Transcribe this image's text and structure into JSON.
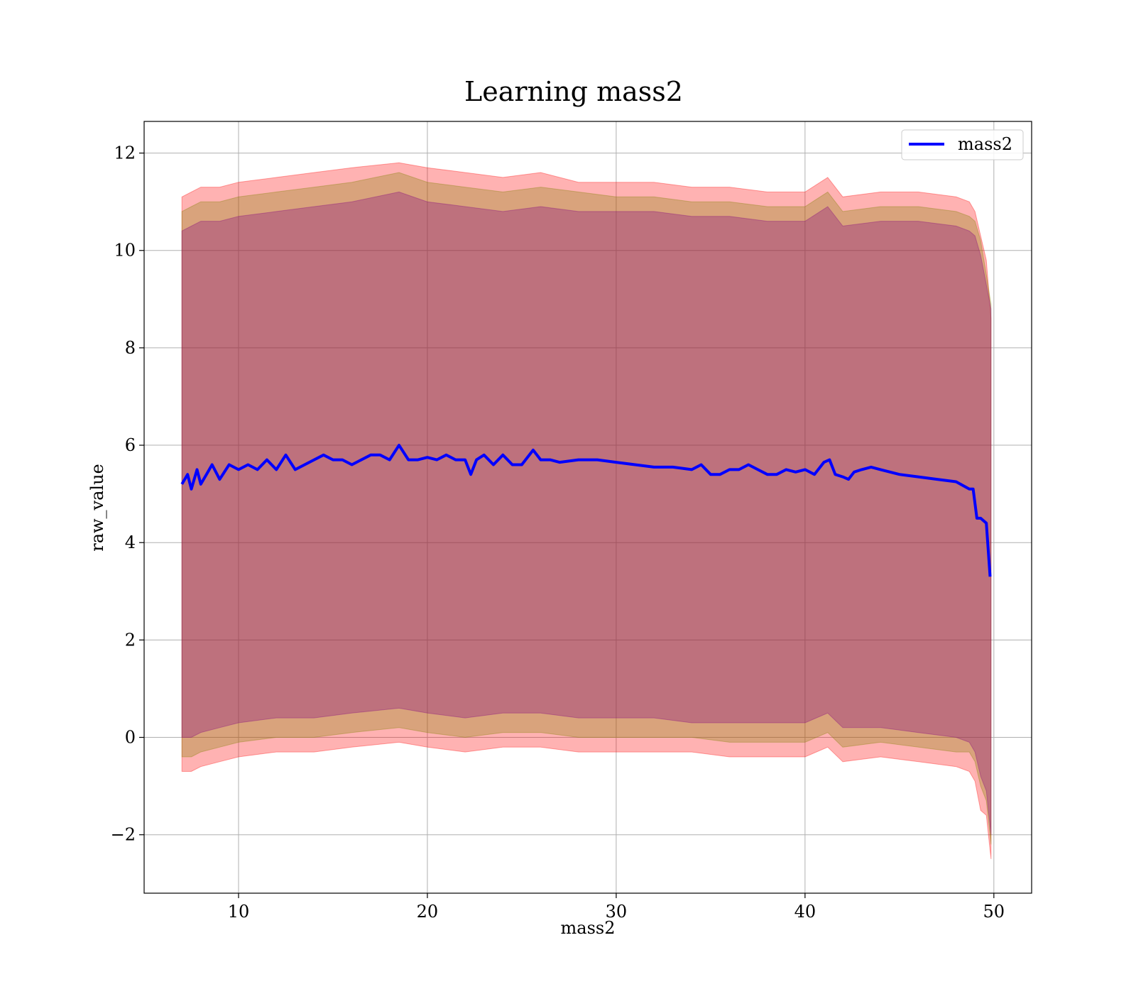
{
  "chart_data": {
    "type": "line",
    "title": "Learning mass2",
    "xlabel": "mass2",
    "ylabel": "raw_value",
    "xlim": [
      5,
      52
    ],
    "ylim": [
      -3.2,
      12.65
    ],
    "xticks": [
      10,
      20,
      30,
      40,
      50
    ],
    "yticks": [
      -2,
      0,
      2,
      4,
      6,
      8,
      10,
      12
    ],
    "xtick_labels": [
      "10",
      "20",
      "30",
      "40",
      "50"
    ],
    "ytick_labels": [
      "−2",
      "0",
      "2",
      "4",
      "6",
      "8",
      "10",
      "12"
    ],
    "grid": true,
    "legend": {
      "position": "top-right",
      "entries": [
        {
          "label": "mass2",
          "color": "#0000ff"
        }
      ]
    },
    "series": [
      {
        "name": "mass2",
        "color": "#0000ff",
        "x": [
          7.0,
          7.3,
          7.5,
          7.8,
          8.0,
          8.3,
          8.6,
          9.0,
          9.5,
          10.0,
          10.5,
          11.0,
          11.5,
          12.0,
          12.5,
          13.0,
          13.5,
          14.0,
          14.5,
          15.0,
          15.5,
          16.0,
          16.5,
          17.0,
          17.5,
          18.0,
          18.5,
          19.0,
          19.5,
          20.0,
          20.5,
          21.0,
          21.5,
          22.0,
          22.3,
          22.6,
          23.0,
          23.5,
          24.0,
          24.5,
          25.0,
          25.6,
          26.0,
          26.5,
          27.0,
          28.0,
          29.0,
          30.0,
          31.0,
          32.0,
          33.0,
          34.0,
          34.5,
          35.0,
          35.5,
          36.0,
          36.5,
          37.0,
          37.5,
          38.0,
          38.5,
          39.0,
          39.5,
          40.0,
          40.5,
          41.0,
          41.3,
          41.6,
          42.0,
          42.3,
          42.6,
          43.0,
          43.5,
          44.0,
          44.5,
          45.0,
          46.0,
          47.0,
          48.0,
          48.7,
          48.9,
          49.1,
          49.3,
          49.6,
          49.8
        ],
        "y": [
          5.2,
          5.4,
          5.1,
          5.5,
          5.2,
          5.4,
          5.6,
          5.3,
          5.6,
          5.5,
          5.6,
          5.5,
          5.7,
          5.5,
          5.8,
          5.5,
          5.6,
          5.7,
          5.8,
          5.7,
          5.7,
          5.6,
          5.7,
          5.8,
          5.8,
          5.7,
          6.0,
          5.7,
          5.7,
          5.75,
          5.7,
          5.8,
          5.7,
          5.7,
          5.4,
          5.7,
          5.8,
          5.6,
          5.8,
          5.6,
          5.6,
          5.9,
          5.7,
          5.7,
          5.65,
          5.7,
          5.7,
          5.65,
          5.6,
          5.55,
          5.55,
          5.5,
          5.6,
          5.4,
          5.4,
          5.5,
          5.5,
          5.6,
          5.5,
          5.4,
          5.4,
          5.5,
          5.45,
          5.5,
          5.4,
          5.65,
          5.7,
          5.4,
          5.35,
          5.3,
          5.45,
          5.5,
          5.55,
          5.5,
          5.45,
          5.4,
          5.35,
          5.3,
          5.25,
          5.1,
          5.1,
          4.5,
          4.5,
          4.4,
          3.3
        ]
      }
    ],
    "bands": [
      {
        "color": "#ff0000",
        "opacity": 0.3,
        "x": [
          7.0,
          7.5,
          8.0,
          9.0,
          10.0,
          12.0,
          14.0,
          16.0,
          18.5,
          20.0,
          22.0,
          24.0,
          26.0,
          28.0,
          30.0,
          32.0,
          34.0,
          36.0,
          38.0,
          40.0,
          41.2,
          42.0,
          44.0,
          46.0,
          48.0,
          48.7,
          49.0,
          49.3,
          49.6,
          49.85
        ],
        "upper": [
          11.1,
          11.2,
          11.3,
          11.3,
          11.4,
          11.5,
          11.6,
          11.7,
          11.8,
          11.7,
          11.6,
          11.5,
          11.6,
          11.4,
          11.4,
          11.4,
          11.3,
          11.3,
          11.2,
          11.2,
          11.5,
          11.1,
          11.2,
          11.2,
          11.1,
          11.0,
          10.8,
          10.3,
          9.8,
          8.6
        ],
        "lower": [
          -0.7,
          -0.7,
          -0.6,
          -0.5,
          -0.4,
          -0.3,
          -0.3,
          -0.2,
          -0.1,
          -0.2,
          -0.3,
          -0.2,
          -0.2,
          -0.3,
          -0.3,
          -0.3,
          -0.3,
          -0.4,
          -0.4,
          -0.4,
          -0.2,
          -0.5,
          -0.4,
          -0.5,
          -0.6,
          -0.7,
          -0.9,
          -1.5,
          -1.6,
          -2.5
        ]
      },
      {
        "color": "#808000",
        "opacity": 0.3,
        "x": [
          7.0,
          7.5,
          8.0,
          9.0,
          10.0,
          12.0,
          14.0,
          16.0,
          18.5,
          20.0,
          22.0,
          24.0,
          26.0,
          28.0,
          30.0,
          32.0,
          34.0,
          36.0,
          38.0,
          40.0,
          41.2,
          42.0,
          44.0,
          46.0,
          48.0,
          48.7,
          49.0,
          49.3,
          49.6,
          49.85
        ],
        "upper": [
          10.8,
          10.9,
          11.0,
          11.0,
          11.1,
          11.2,
          11.3,
          11.4,
          11.6,
          11.4,
          11.3,
          11.2,
          11.3,
          11.2,
          11.1,
          11.1,
          11.0,
          11.0,
          10.9,
          10.9,
          11.2,
          10.8,
          10.9,
          10.9,
          10.8,
          10.7,
          10.6,
          10.2,
          9.5,
          8.9
        ],
        "lower": [
          -0.4,
          -0.4,
          -0.3,
          -0.2,
          -0.1,
          0.0,
          0.0,
          0.1,
          0.2,
          0.1,
          0.0,
          0.1,
          0.1,
          0.0,
          0.0,
          0.0,
          0.0,
          -0.1,
          -0.1,
          -0.1,
          0.1,
          -0.2,
          -0.1,
          -0.2,
          -0.3,
          -0.3,
          -0.5,
          -1.0,
          -1.3,
          -2.2
        ]
      },
      {
        "color": "#800080",
        "opacity": 0.3,
        "x": [
          7.0,
          7.5,
          8.0,
          9.0,
          10.0,
          12.0,
          14.0,
          16.0,
          18.5,
          20.0,
          22.0,
          24.0,
          26.0,
          28.0,
          30.0,
          32.0,
          34.0,
          36.0,
          38.0,
          40.0,
          41.2,
          42.0,
          44.0,
          46.0,
          48.0,
          48.7,
          49.0,
          49.3,
          49.6,
          49.85
        ],
        "upper": [
          10.4,
          10.5,
          10.6,
          10.6,
          10.7,
          10.8,
          10.9,
          11.0,
          11.2,
          11.0,
          10.9,
          10.8,
          10.9,
          10.8,
          10.8,
          10.8,
          10.7,
          10.7,
          10.6,
          10.6,
          10.9,
          10.5,
          10.6,
          10.6,
          10.5,
          10.4,
          10.3,
          9.9,
          9.3,
          8.8
        ],
        "lower": [
          0.0,
          0.0,
          0.1,
          0.2,
          0.3,
          0.4,
          0.4,
          0.5,
          0.6,
          0.5,
          0.4,
          0.5,
          0.5,
          0.4,
          0.4,
          0.4,
          0.3,
          0.3,
          0.3,
          0.3,
          0.5,
          0.2,
          0.2,
          0.1,
          0.0,
          -0.1,
          -0.3,
          -0.8,
          -1.1,
          -2.0
        ]
      }
    ]
  }
}
